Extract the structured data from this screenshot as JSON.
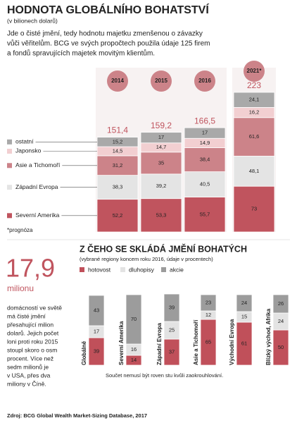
{
  "header": {
    "title": "HODNOTA GLOBÁLNÍHO BOHATSTVÍ",
    "subtitle": "(v bilionech dolarů)",
    "description": [
      "Jde o čisté jmění, tedy hodnotu majetku zmenšenou o závazky",
      "vůči věřitelům. BCG ve svých propočtech použila údaje 125 firem",
      "a fondů spravujících majetek movitým klientům."
    ]
  },
  "chart_data": [
    {
      "type": "stacked-bar",
      "categories": [
        "2014",
        "2015",
        "2016",
        "2021*"
      ],
      "series": [
        {
          "name": "Severní Amerika",
          "color": "#c0545e",
          "values": [
            52.2,
            53.3,
            55.7,
            73
          ],
          "value_labels": [
            "52,2",
            "53,3",
            "55,7",
            "73"
          ]
        },
        {
          "name": "Západní Evropa",
          "color": "#e4e4e4",
          "values": [
            38.3,
            39.2,
            40.5,
            48.1
          ],
          "value_labels": [
            "38,3",
            "39,2",
            "40,5",
            "48,1"
          ]
        },
        {
          "name": "Asie a Tichomoří",
          "color": "#cc8389",
          "values": [
            31.2,
            35,
            38.4,
            61.6
          ],
          "value_labels": [
            "31,2",
            "35",
            "38,4",
            "61,6"
          ]
        },
        {
          "name": "Japonsko",
          "color": "#f2cfd1",
          "values": [
            14.5,
            14.7,
            14.9,
            16.2
          ],
          "value_labels": [
            "14,5",
            "14,7",
            "14,9",
            "16,2"
          ]
        },
        {
          "name": "ostatní",
          "color": "#a9a9a9",
          "values": [
            15.2,
            17,
            17,
            24.1
          ],
          "value_labels": [
            "15,2",
            "17",
            "17",
            "24,1"
          ]
        }
      ],
      "totals": {
        "values": [
          151.4,
          159.2,
          166.5,
          223
        ],
        "value_labels": [
          "151,4",
          "159,2",
          "166,5",
          "223"
        ]
      },
      "note": "*prognóza"
    },
    {
      "type": "stacked-bar",
      "title": "Z ČEHO SE SKLÁDÁ JMĚNÍ BOHATÝCH",
      "subtitle": "(vybrané regiony koncem roku 2016, údaje v procentech)",
      "categories": [
        "Globálně",
        "Severní Amerika",
        "Západní Evropa",
        "Asie a Tichomoří",
        "Východní Evropa",
        "Blízký východ, Afrika"
      ],
      "series": [
        {
          "name": "hotovost",
          "color": "#c0505a",
          "values": [
            39,
            14,
            37,
            65,
            61,
            50
          ]
        },
        {
          "name": "dluhopisy",
          "color": "#e3e3e3",
          "values": [
            17,
            16,
            25,
            12,
            15,
            24
          ]
        },
        {
          "name": "akcie",
          "color": "#9c9c9c",
          "values": [
            43,
            70,
            39,
            23,
            24,
            26
          ]
        }
      ],
      "note": "Součet nemusí být roven stu kvůli zaokrouhlování."
    }
  ],
  "sidebar": {
    "figure": "17,9",
    "unit": "milionu",
    "text": [
      "domácností ve světě",
      "má čisté jmění",
      "přesahující milion",
      "dolarů. Jejich počet",
      "loni proti roku 2015",
      "stoupl skoro o osm",
      "procent. Více než",
      "sedm milionů je",
      "v USA, přes dva",
      "miliony v Číně."
    ]
  },
  "source": "Zdroj: BCG Global Wealth Market-Sizing Database, 2017"
}
